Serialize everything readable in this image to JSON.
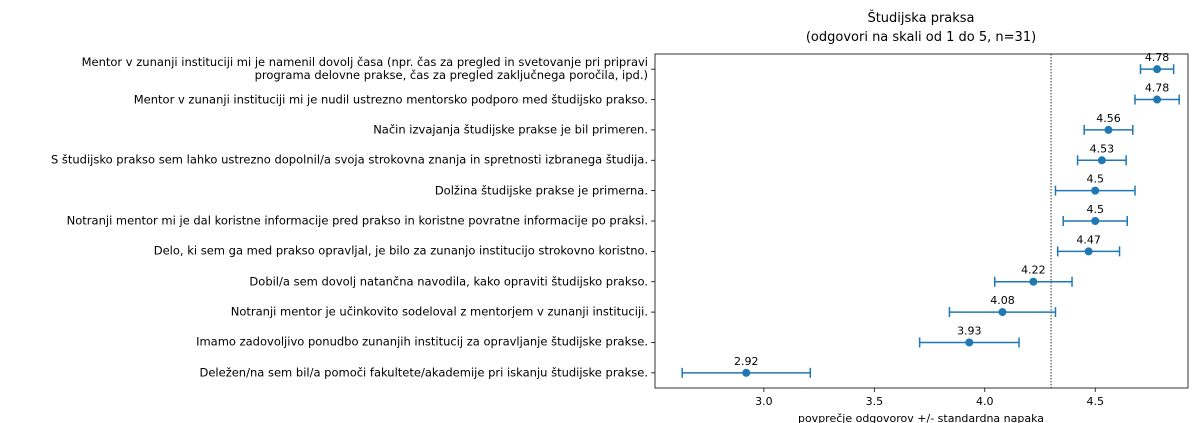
{
  "chart_data": {
    "type": "errorbar",
    "title": "Študijska praksa",
    "subtitle": "(odgovori na skali od 1 do 5, n=31)",
    "xlabel": "povprečje odgovorov +/- standardna napaka",
    "categories": [
      "Mentor v zunanji instituciji mi je namenil dovolj časa (npr. čas za pregled in svetovanje pri pripravi\nprograma delovne prakse, čas za pregled zaključnega poročila, ipd.)",
      "Mentor v zunanji instituciji mi je nudil ustrezno mentorsko podporo med študijsko prakso.",
      "Način izvajanja študijske prakse je bil primeren.",
      "S študijsko prakso sem lahko ustrezno dopolnil/a svoja strokovna znanja in spretnosti izbranega študija.",
      "Dolžina študijske prakse je primerna.",
      "Notranji mentor mi je dal koristne informacije pred prakso in koristne povratne informacije po praksi.",
      "Delo, ki sem ga med prakso opravljal, je bilo za zunanjo institucijo strokovno koristno.",
      "Dobil/a sem dovolj natančna navodila, kako opraviti študijsko prakso.",
      "Notranji mentor je učinkovito sodeloval z mentorjem v zunanji instituciji.",
      "Imamo zadovoljivo ponudbo zunanjih institucij za opravljanje študijske prakse.",
      "Deležen/na sem bil/a pomoči fakultete/akademije pri iskanju študijske prakse."
    ],
    "values": [
      4.78,
      4.78,
      4.56,
      4.53,
      4.5,
      4.5,
      4.47,
      4.22,
      4.08,
      3.93,
      2.92
    ],
    "errors": [
      0.075,
      0.1,
      0.11,
      0.11,
      0.18,
      0.145,
      0.14,
      0.175,
      0.24,
      0.225,
      0.29
    ],
    "color": "#1f77b4",
    "reference_line": 4.3,
    "xlim": [
      2.507,
      4.92
    ],
    "xticks": [
      {
        "value": 3,
        "label": "3.0"
      },
      3.5,
      {
        "value": 4,
        "label": "4.0"
      },
      4.5
    ]
  }
}
